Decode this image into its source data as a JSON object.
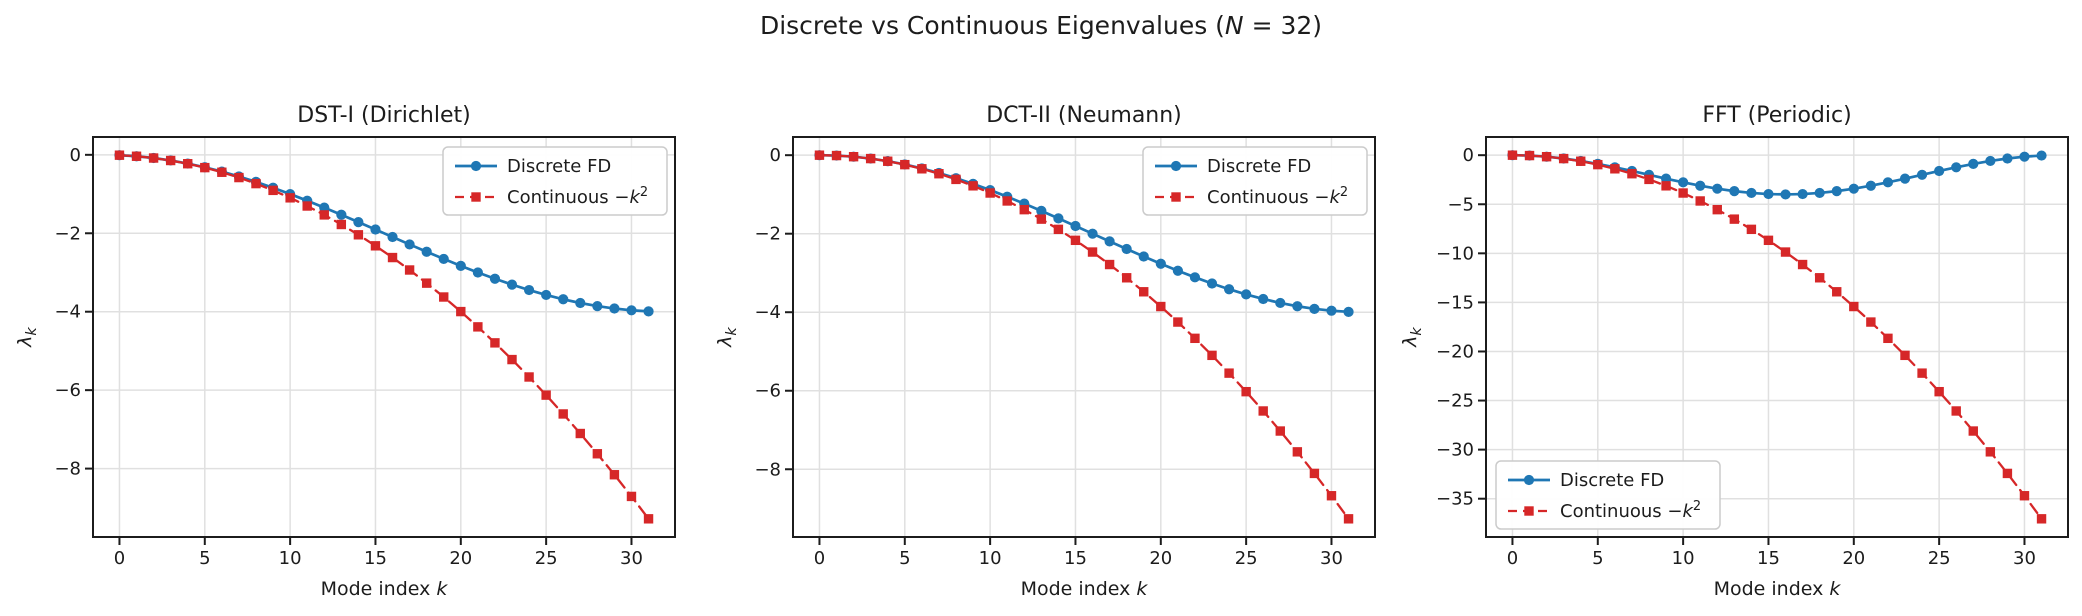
{
  "figure": {
    "suptitle": "Discrete vs Continuous Eigenvalues (N = 32)",
    "suptitle_rich": [
      {
        "t": "Discrete vs Continuous Eigenvalues ("
      },
      {
        "t": "N",
        "i": true
      },
      {
        "t": " = 32)"
      }
    ],
    "colors": {
      "discrete": "#1f77b4",
      "continuous": "#d62728",
      "grid": "#e0e0e0",
      "spine": "#1c1c1c",
      "text": "#1c1c1c",
      "legend_border": "#cbcbcb",
      "background": "#ffffff"
    }
  },
  "chart_data": [
    {
      "type": "line",
      "title": "DST-I (Dirichlet)",
      "xlabel": "Mode index k",
      "xlabel_rich": [
        {
          "t": "Mode index "
        },
        {
          "t": "k",
          "i": true
        }
      ],
      "ylabel": "λ_k",
      "ylabel_rich": [
        {
          "t": "λ",
          "i": true
        },
        {
          "t": "k",
          "i": true,
          "sub": true
        }
      ],
      "grid": true,
      "legend_position": "upper-right",
      "xlim": [
        -1.55,
        32.55
      ],
      "ylim": [
        -9.7441,
        0.4545
      ],
      "xticks": [
        0,
        5,
        10,
        15,
        20,
        25,
        30
      ],
      "xtick_labels": [
        "0",
        "5",
        "10",
        "15",
        "20",
        "25",
        "30"
      ],
      "yticks": [
        0,
        -2,
        -4,
        -6,
        -8
      ],
      "ytick_labels": [
        "0",
        "−2",
        "−4",
        "−6",
        "−8"
      ],
      "x": [
        0,
        1,
        2,
        3,
        4,
        5,
        6,
        7,
        8,
        9,
        10,
        11,
        12,
        13,
        14,
        15,
        16,
        17,
        18,
        19,
        20,
        21,
        22,
        23,
        24,
        25,
        26,
        27,
        28,
        29,
        30,
        31
      ],
      "series": [
        {
          "name": "Discrete FD",
          "name_rich": [
            {
              "t": "Discrete FD"
            }
          ],
          "color": "#1f77b4",
          "marker": "circle",
          "linestyle": "solid",
          "values": [
            -0.0091,
            -0.0361,
            -0.081,
            -0.1433,
            -0.2223,
            -0.3175,
            -0.4279,
            -0.5525,
            -0.6903,
            -0.8399,
            -1.0,
            -1.1692,
            -1.3459,
            -1.5285,
            -1.7154,
            -1.9048,
            -2.0952,
            -2.2846,
            -2.4715,
            -2.6541,
            -2.8308,
            -3.0,
            -3.1601,
            -3.3097,
            -3.4475,
            -3.5721,
            -3.6825,
            -3.7777,
            -3.8567,
            -3.919,
            -3.9639,
            -3.9909
          ]
        },
        {
          "name": "Continuous −k²",
          "name_rich": [
            {
              "t": "Continuous −"
            },
            {
              "t": "k",
              "i": true
            },
            {
              "t": "2",
              "sup": true
            }
          ],
          "color": "#d62728",
          "marker": "square",
          "linestyle": "dashed",
          "values": [
            -0.0091,
            -0.0363,
            -0.0816,
            -0.145,
            -0.2266,
            -0.3263,
            -0.4441,
            -0.58,
            -0.7341,
            -0.9063,
            -1.0966,
            -1.3051,
            -1.5316,
            -1.7763,
            -2.0392,
            -2.3201,
            -2.6192,
            -2.9364,
            -3.2717,
            -3.6252,
            -3.9968,
            -4.3865,
            -4.7943,
            -5.2203,
            -5.6644,
            -6.1266,
            -6.6069,
            -7.1054,
            -7.622,
            -8.1567,
            -8.7095,
            -9.2805
          ]
        }
      ]
    },
    {
      "type": "line",
      "title": "DCT-II (Neumann)",
      "xlabel": "Mode index k",
      "xlabel_rich": [
        {
          "t": "Mode index "
        },
        {
          "t": "k",
          "i": true
        }
      ],
      "ylabel": "λ_k",
      "ylabel_rich": [
        {
          "t": "λ",
          "i": true
        },
        {
          "t": "k",
          "i": true,
          "sub": true
        }
      ],
      "grid": true,
      "legend_position": "upper-right",
      "xlim": [
        -1.55,
        32.55
      ],
      "ylim": [
        -9.7255,
        0.4631
      ],
      "xticks": [
        0,
        5,
        10,
        15,
        20,
        25,
        30
      ],
      "xtick_labels": [
        "0",
        "5",
        "10",
        "15",
        "20",
        "25",
        "30"
      ],
      "yticks": [
        0,
        -2,
        -4,
        -6,
        -8
      ],
      "ytick_labels": [
        "0",
        "−2",
        "−4",
        "−6",
        "−8"
      ],
      "x": [
        0,
        1,
        2,
        3,
        4,
        5,
        6,
        7,
        8,
        9,
        10,
        11,
        12,
        13,
        14,
        15,
        16,
        17,
        18,
        19,
        20,
        21,
        22,
        23,
        24,
        25,
        26,
        27,
        28,
        29,
        30,
        31
      ],
      "series": [
        {
          "name": "Discrete FD",
          "name_rich": [
            {
              "t": "Discrete FD"
            }
          ],
          "color": "#1f77b4",
          "marker": "circle",
          "linestyle": "solid",
          "values": [
            0.0,
            -0.0096,
            -0.0384,
            -0.0861,
            -0.1522,
            -0.2362,
            -0.3371,
            -0.454,
            -0.5858,
            -0.7312,
            -0.8889,
            -1.0572,
            -1.2346,
            -1.4194,
            -1.6098,
            -1.804,
            -2.0,
            -2.196,
            -2.3902,
            -2.5806,
            -2.7654,
            -2.9428,
            -3.1111,
            -3.2688,
            -3.4142,
            -3.546,
            -3.6629,
            -3.7638,
            -3.8478,
            -3.9139,
            -3.9616,
            -3.9904
          ]
        },
        {
          "name": "Continuous −k²",
          "name_rich": [
            {
              "t": "Continuous −"
            },
            {
              "t": "k",
              "i": true
            },
            {
              "t": "2",
              "sup": true
            }
          ],
          "color": "#d62728",
          "marker": "square",
          "linestyle": "dashed",
          "values": [
            0.0,
            -0.0096,
            -0.0386,
            -0.0867,
            -0.1542,
            -0.241,
            -0.347,
            -0.4723,
            -0.6169,
            -0.7807,
            -0.9638,
            -1.1662,
            -1.3879,
            -1.6289,
            -1.8891,
            -2.1686,
            -2.4674,
            -2.7855,
            -3.1228,
            -3.4794,
            -3.8553,
            -4.2505,
            -4.6649,
            -5.0987,
            -5.5517,
            -6.0239,
            -6.5155,
            -7.0263,
            -7.5564,
            -8.1058,
            -8.6745,
            -9.2624
          ]
        }
      ]
    },
    {
      "type": "line",
      "title": "FFT (Periodic)",
      "xlabel": "Mode index k",
      "xlabel_rich": [
        {
          "t": "Mode index "
        },
        {
          "t": "k",
          "i": true
        }
      ],
      "ylabel": "λ_k",
      "ylabel_rich": [
        {
          "t": "λ",
          "i": true
        },
        {
          "t": "k",
          "i": true,
          "sub": true
        }
      ],
      "grid": true,
      "legend_position": "lower-left",
      "xlim": [
        -1.55,
        32.55
      ],
      "ylim": [
        -38.9021,
        1.8525
      ],
      "xticks": [
        0,
        5,
        10,
        15,
        20,
        25,
        30
      ],
      "xtick_labels": [
        "0",
        "5",
        "10",
        "15",
        "20",
        "25",
        "30"
      ],
      "yticks": [
        0,
        -5,
        -10,
        -15,
        -20,
        -25,
        -30,
        -35
      ],
      "ytick_labels": [
        "0",
        "−5",
        "−10",
        "−15",
        "−20",
        "−25",
        "−30",
        "−35"
      ],
      "x": [
        0,
        1,
        2,
        3,
        4,
        5,
        6,
        7,
        8,
        9,
        10,
        11,
        12,
        13,
        14,
        15,
        16,
        17,
        18,
        19,
        20,
        21,
        22,
        23,
        24,
        25,
        26,
        27,
        28,
        29,
        30,
        31
      ],
      "series": [
        {
          "name": "Discrete FD",
          "name_rich": [
            {
              "t": "Discrete FD"
            }
          ],
          "color": "#1f77b4",
          "marker": "circle",
          "linestyle": "solid",
          "values": [
            0.0,
            -0.0384,
            -0.1522,
            -0.3371,
            -0.5858,
            -0.8889,
            -1.2346,
            -1.6098,
            -2.0,
            -2.3902,
            -2.7654,
            -3.1111,
            -3.4142,
            -3.6629,
            -3.8478,
            -3.9616,
            -4.0,
            -3.9616,
            -3.8478,
            -3.6629,
            -3.4142,
            -3.1111,
            -2.7654,
            -2.3902,
            -2.0,
            -1.6098,
            -1.2346,
            -0.8889,
            -0.5858,
            -0.3371,
            -0.1522,
            -0.0384
          ]
        },
        {
          "name": "Continuous −k²",
          "name_rich": [
            {
              "t": "Continuous −"
            },
            {
              "t": "k",
              "i": true
            },
            {
              "t": "2",
              "sup": true
            }
          ],
          "color": "#d62728",
          "marker": "square",
          "linestyle": "dashed",
          "values": [
            0.0,
            -0.0386,
            -0.1542,
            -0.347,
            -0.6169,
            -0.9638,
            -1.3879,
            -1.8891,
            -2.4674,
            -3.1228,
            -3.8553,
            -4.6649,
            -5.5517,
            -6.5155,
            -7.5564,
            -8.6745,
            -9.8696,
            -11.1419,
            -12.4912,
            -13.9177,
            -15.4213,
            -17.002,
            -18.6597,
            -20.3946,
            -22.2066,
            -24.0958,
            -26.062,
            -28.1053,
            -30.2257,
            -32.4232,
            -34.6979,
            -37.0496
          ]
        }
      ]
    }
  ]
}
